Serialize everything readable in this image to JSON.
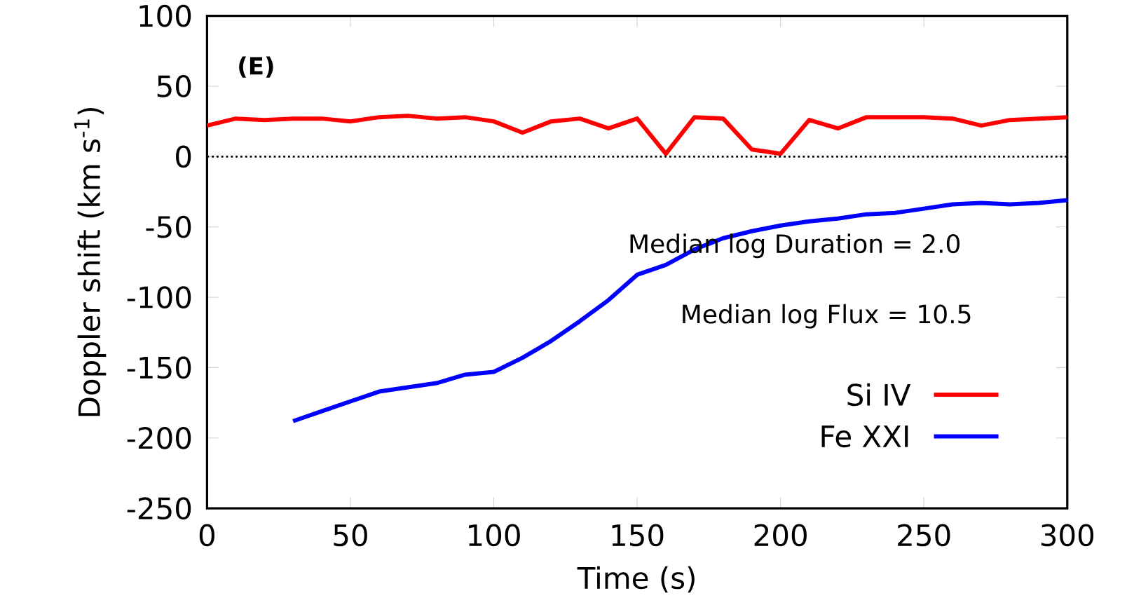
{
  "chart_data": {
    "type": "line",
    "xlabel": "Time (s)",
    "ylabel": "Doppler shift (km s$^{-1}$)",
    "xlim": [
      0,
      300
    ],
    "xticks": [
      0,
      50,
      100,
      150,
      200,
      250,
      300
    ],
    "ylim": [
      -250,
      100
    ],
    "yticks": [
      -250,
      -200,
      -150,
      -100,
      -50,
      0,
      50,
      100
    ],
    "grid": false,
    "legend": "bottom right",
    "marker": "none",
    "line_style": "solid",
    "ref_lines": [
      {
        "axis": "y",
        "value": 0,
        "line_style": "dotted",
        "color": "#000000"
      }
    ],
    "annotations": [
      "(E)",
      "Median log Duration = 2.0",
      "Median log Flux = 10.5"
    ],
    "series": [
      {
        "name": "Si IV",
        "color": "#ff0000",
        "x": [
          0,
          10,
          20,
          30,
          40,
          50,
          60,
          70,
          80,
          90,
          100,
          110,
          120,
          130,
          140,
          150,
          160,
          170,
          180,
          190,
          200,
          210,
          220,
          230,
          240,
          250,
          260,
          270,
          280,
          290,
          300
        ],
        "values": [
          22,
          27,
          26,
          27,
          27,
          25,
          28,
          29,
          27,
          28,
          25,
          17,
          25,
          27,
          20,
          27,
          2,
          28,
          27,
          5,
          2,
          26,
          20,
          28,
          28,
          28,
          27,
          22,
          26,
          27,
          28
        ]
      },
      {
        "name": "Fe XXI",
        "color": "#0000ff",
        "x": [
          30,
          40,
          50,
          60,
          70,
          80,
          90,
          100,
          110,
          120,
          130,
          140,
          150,
          160,
          170,
          180,
          190,
          200,
          210,
          220,
          230,
          240,
          250,
          260,
          270,
          280,
          290,
          300
        ],
        "values": [
          -188,
          -181,
          -174,
          -167,
          -164,
          -161,
          -155,
          -153,
          -143,
          -131,
          -117,
          -102,
          -84,
          -77,
          -66,
          -58,
          -53,
          -49,
          -46,
          -44,
          -41,
          -40,
          -37,
          -34,
          -33,
          -34,
          -33,
          -31
        ]
      }
    ]
  }
}
